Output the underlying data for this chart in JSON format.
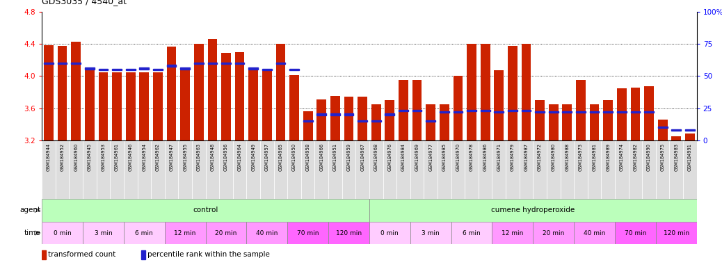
{
  "title": "GDS3035 / 4540_at",
  "ylim_left": [
    3.2,
    4.8
  ],
  "ylim_right": [
    0,
    100
  ],
  "yticks_left": [
    3.2,
    3.6,
    4.0,
    4.4,
    4.8
  ],
  "yticks_right": [
    0,
    25,
    50,
    75,
    100
  ],
  "ytick_labels_right": [
    "0",
    "25",
    "50",
    "75",
    "100%"
  ],
  "bar_color": "#CC2200",
  "percentile_color": "#2222CC",
  "samples": [
    "GSM184944",
    "GSM184952",
    "GSM184960",
    "GSM184945",
    "GSM184953",
    "GSM184961",
    "GSM184946",
    "GSM184954",
    "GSM184962",
    "GSM184947",
    "GSM184955",
    "GSM184963",
    "GSM184948",
    "GSM184956",
    "GSM184964",
    "GSM184949",
    "GSM184957",
    "GSM184965",
    "GSM184950",
    "GSM184958",
    "GSM184966",
    "GSM184951",
    "GSM184959",
    "GSM184967",
    "GSM184968",
    "GSM184976",
    "GSM184984",
    "GSM184969",
    "GSM184977",
    "GSM184985",
    "GSM184970",
    "GSM184978",
    "GSM184986",
    "GSM184971",
    "GSM184979",
    "GSM184987",
    "GSM184972",
    "GSM184980",
    "GSM184988",
    "GSM184973",
    "GSM184981",
    "GSM184989",
    "GSM184974",
    "GSM184982",
    "GSM184990",
    "GSM184975",
    "GSM184983",
    "GSM184991"
  ],
  "transformed_counts": [
    4.39,
    4.38,
    4.43,
    4.07,
    4.05,
    4.05,
    4.05,
    4.05,
    4.05,
    4.37,
    4.07,
    4.4,
    4.46,
    4.29,
    4.3,
    4.1,
    4.07,
    4.4,
    4.01,
    3.56,
    3.71,
    3.75,
    3.74,
    3.74,
    3.65,
    3.7,
    3.95,
    3.95,
    3.65,
    3.65,
    4.0,
    4.4,
    4.4,
    4.07,
    4.38,
    4.4,
    3.7,
    3.65,
    3.65,
    3.95,
    3.65,
    3.7,
    3.85,
    3.86,
    3.87,
    3.46,
    3.25,
    3.28
  ],
  "percentile_ranks": [
    60,
    60,
    60,
    56,
    55,
    55,
    55,
    56,
    55,
    58,
    56,
    60,
    60,
    60,
    60,
    56,
    55,
    60,
    55,
    15,
    20,
    20,
    20,
    15,
    15,
    20,
    23,
    23,
    15,
    22,
    22,
    23,
    23,
    22,
    23,
    23,
    22,
    22,
    22,
    22,
    22,
    22,
    22,
    22,
    22,
    10,
    8,
    8
  ],
  "agent_groups": [
    {
      "label": "control",
      "start": 0,
      "end": 24
    },
    {
      "label": "cumene hydroperoxide",
      "start": 24,
      "end": 48
    }
  ],
  "agent_color": "#BBFFBB",
  "time_groups": [
    {
      "label": "0 min",
      "start": 0,
      "end": 3
    },
    {
      "label": "3 min",
      "start": 3,
      "end": 6
    },
    {
      "label": "6 min",
      "start": 6,
      "end": 9
    },
    {
      "label": "12 min",
      "start": 9,
      "end": 12
    },
    {
      "label": "20 min",
      "start": 12,
      "end": 15
    },
    {
      "label": "40 min",
      "start": 15,
      "end": 18
    },
    {
      "label": "70 min",
      "start": 18,
      "end": 21
    },
    {
      "label": "120 min",
      "start": 21,
      "end": 24
    },
    {
      "label": "0 min",
      "start": 24,
      "end": 27
    },
    {
      "label": "3 min",
      "start": 27,
      "end": 30
    },
    {
      "label": "6 min",
      "start": 30,
      "end": 33
    },
    {
      "label": "12 min",
      "start": 33,
      "end": 36
    },
    {
      "label": "20 min",
      "start": 36,
      "end": 39
    },
    {
      "label": "40 min",
      "start": 39,
      "end": 42
    },
    {
      "label": "70 min",
      "start": 42,
      "end": 45
    },
    {
      "label": "120 min",
      "start": 45,
      "end": 48
    }
  ],
  "time_colors": [
    "#FFCCFF",
    "#FFCCFF",
    "#FFCCFF",
    "#FF99FF",
    "#FF99FF",
    "#FF99FF",
    "#FF66FF",
    "#FF66FF",
    "#FFCCFF",
    "#FFCCFF",
    "#FFCCFF",
    "#FF99FF",
    "#FF99FF",
    "#FF99FF",
    "#FF66FF",
    "#FF66FF"
  ],
  "legend_bar_label": "transformed count",
  "legend_percentile_label": "percentile rank within the sample"
}
